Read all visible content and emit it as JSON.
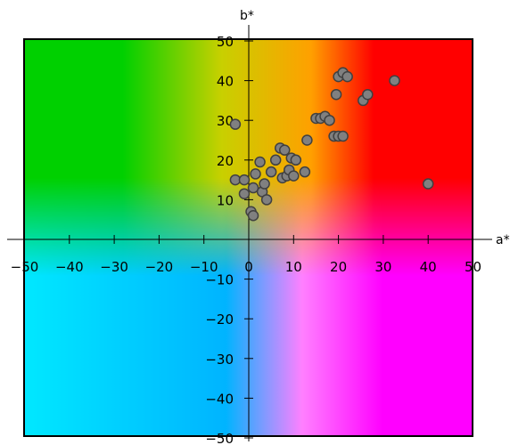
{
  "chart_data": {
    "type": "scatter",
    "title": "",
    "xlabel": "a*",
    "ylabel": "b*",
    "xlim": [
      -50,
      50
    ],
    "ylim": [
      -50,
      50
    ],
    "x_ticks": [
      "−50",
      "−40",
      "−30",
      "−20",
      "−10",
      "0",
      "10",
      "20",
      "30",
      "40",
      "50"
    ],
    "y_ticks": [
      "−50",
      "−40",
      "−30",
      "−20",
      "−10",
      "0",
      "10",
      "20",
      "30",
      "40",
      "50"
    ],
    "tick_values": [
      -50,
      -40,
      -30,
      -20,
      -10,
      0,
      10,
      20,
      30,
      40,
      50
    ],
    "grid": false,
    "background": "CIELAB a*b* color plane",
    "colors": {
      "marker_fill": "#808080",
      "marker_stroke": "#404040",
      "green": "#00d000",
      "yellow": "#c8d000",
      "orange": "#ffa000",
      "red": "#ff0000",
      "magenta": "#ff00ff",
      "pink": "#ff80ff",
      "cyan": "#00e8ff",
      "blue": "#00b4ff"
    },
    "series": [
      {
        "points": [
          [
            -3,
            29
          ],
          [
            -3,
            15
          ],
          [
            -1,
            15
          ],
          [
            -1,
            11.5
          ],
          [
            0.5,
            7
          ],
          [
            1,
            6
          ],
          [
            1,
            13
          ],
          [
            1.5,
            16.5
          ],
          [
            2.5,
            19.5
          ],
          [
            3,
            12
          ],
          [
            3.5,
            14
          ],
          [
            4,
            10
          ],
          [
            5,
            17
          ],
          [
            6,
            20
          ],
          [
            7,
            23
          ],
          [
            7.5,
            15.5
          ],
          [
            8,
            22.5
          ],
          [
            8.5,
            16
          ],
          [
            9,
            17.5
          ],
          [
            9.5,
            20.5
          ],
          [
            10,
            16
          ],
          [
            10.5,
            20
          ],
          [
            12.5,
            17
          ],
          [
            13,
            25
          ],
          [
            15,
            30.5
          ],
          [
            16,
            30.5
          ],
          [
            17,
            31
          ],
          [
            18,
            30
          ],
          [
            19,
            26
          ],
          [
            19.5,
            36.5
          ],
          [
            20,
            26
          ],
          [
            20,
            41
          ],
          [
            21,
            26
          ],
          [
            21,
            42
          ],
          [
            22,
            41
          ],
          [
            25.5,
            35
          ],
          [
            26.5,
            36.5
          ],
          [
            32.5,
            40
          ],
          [
            40,
            14
          ]
        ]
      }
    ]
  }
}
